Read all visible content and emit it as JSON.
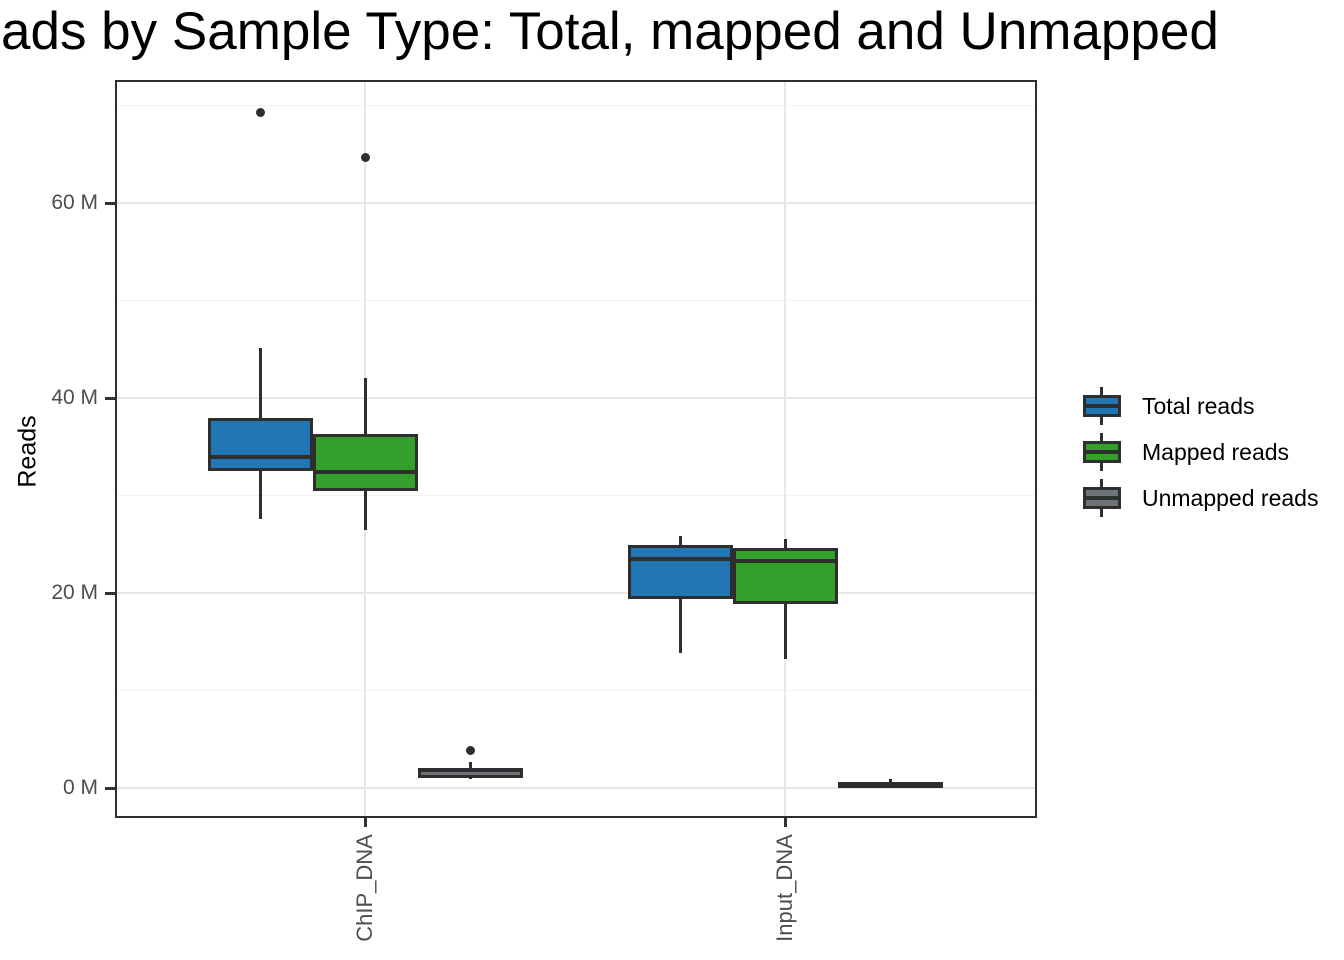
{
  "title": "ads by Sample Type: Total, mapped and Unmapped",
  "y_axis": {
    "label": "Reads",
    "ticks": [
      {
        "value": 0,
        "label": "0 M"
      },
      {
        "value": 20,
        "label": "20 M"
      },
      {
        "value": 40,
        "label": "40 M"
      },
      {
        "value": 60,
        "label": "60 M"
      }
    ],
    "minor_ticks": [
      10,
      30,
      50,
      70
    ]
  },
  "x_axis": {
    "categories": [
      "ChIP_DNA",
      "Input_DNA"
    ]
  },
  "legend": {
    "items": [
      {
        "label": "Total reads",
        "color": "#2177B4"
      },
      {
        "label": "Mapped reads",
        "color": "#34A02C"
      },
      {
        "label": "Unmapped reads",
        "color": "#6E737A"
      }
    ]
  },
  "chart_data": {
    "type": "boxplot",
    "title": "ads by Sample Type: Total, mapped and Unmapped",
    "xlabel": "",
    "ylabel": "Reads",
    "unit": "millions of reads (M)",
    "categories": [
      "ChIP_DNA",
      "Input_DNA"
    ],
    "ylim": [
      -3,
      72.5
    ],
    "y_ticks_major": [
      0,
      20,
      40,
      60
    ],
    "y_ticks_minor": [
      10,
      30,
      50,
      70
    ],
    "grid": true,
    "legend_position": "right-center",
    "series": [
      {
        "name": "Total reads",
        "color": "#2177B4",
        "boxes": [
          {
            "category": "ChIP_DNA",
            "whisker_low": 27.6,
            "q1": 32.5,
            "median": 33.9,
            "q3": 37.9,
            "whisker_high": 45.1,
            "outliers": [
              69.3
            ]
          },
          {
            "category": "Input_DNA",
            "whisker_low": 13.8,
            "q1": 19.4,
            "median": 23.5,
            "q3": 24.9,
            "whisker_high": 25.8,
            "outliers": []
          }
        ]
      },
      {
        "name": "Mapped reads",
        "color": "#34A02C",
        "boxes": [
          {
            "category": "ChIP_DNA",
            "whisker_low": 26.5,
            "q1": 30.5,
            "median": 32.4,
            "q3": 36.3,
            "whisker_high": 42.1,
            "outliers": [
              64.7
            ]
          },
          {
            "category": "Input_DNA",
            "whisker_low": 13.2,
            "q1": 18.9,
            "median": 23.3,
            "q3": 24.6,
            "whisker_high": 25.5,
            "outliers": []
          }
        ]
      },
      {
        "name": "Unmapped reads",
        "color": "#6E737A",
        "boxes": [
          {
            "category": "ChIP_DNA",
            "whisker_low": 0.9,
            "q1": 1.0,
            "median": 1.8,
            "q3": 2.1,
            "whisker_high": 2.7,
            "outliers": [
              3.8
            ]
          },
          {
            "category": "Input_DNA",
            "whisker_low": 0.0,
            "q1": 0.05,
            "median": 0.35,
            "q3": 0.6,
            "whisker_high": 0.9,
            "outliers": []
          }
        ]
      }
    ]
  }
}
